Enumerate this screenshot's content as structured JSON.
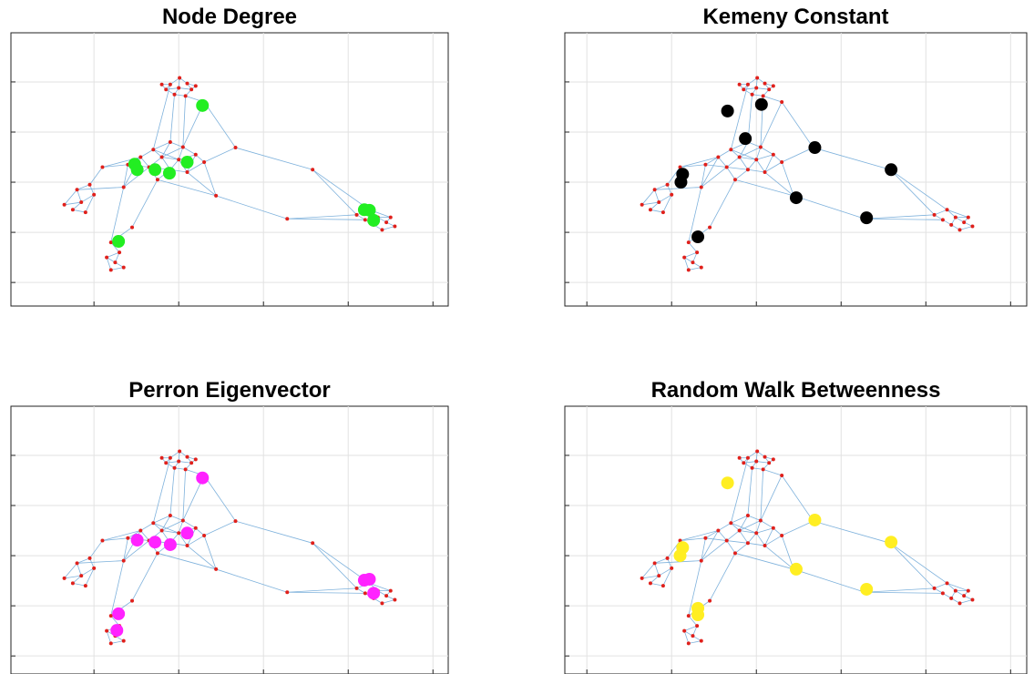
{
  "network": {
    "node_color": "#e0201b",
    "edge_color": "#7fb2dc",
    "x": [
      2.01,
      1.9,
      2.1,
      1.85,
      2.0,
      2.15,
      1.95,
      2.08,
      1.8,
      2.2,
      1.9,
      1.7,
      2.05,
      1.55,
      1.8,
      2.0,
      2.2,
      1.65,
      1.9,
      2.1,
      1.4,
      1.75,
      2.3,
      0.65,
      0.8,
      0.95,
      0.85,
      0.75,
      1.0,
      0.9,
      1.2,
      1.3,
      1.15,
      1.25,
      1.35,
      1.2,
      4.1,
      4.25,
      4.35,
      4.45,
      4.55,
      4.3,
      4.4,
      4.2,
      4.5,
      2.67,
      3.58,
      3.28,
      2.44,
      2.3,
      1.35,
      1.1,
      1.45
    ],
    "y": [
      5.08,
      4.95,
      4.97,
      4.85,
      4.88,
      4.85,
      4.75,
      4.72,
      4.95,
      4.92,
      3.8,
      3.65,
      3.7,
      3.5,
      3.5,
      3.45,
      3.55,
      3.3,
      3.25,
      3.2,
      3.35,
      3.05,
      3.4,
      2.55,
      2.85,
      2.95,
      2.6,
      2.45,
      2.75,
      2.4,
      1.8,
      1.6,
      1.5,
      1.4,
      1.3,
      1.25,
      2.35,
      2.45,
      2.3,
      2.2,
      2.12,
      2.15,
      2.05,
      2.25,
      2.3,
      3.69,
      3.25,
      2.27,
      2.73,
      4.6,
      2.9,
      3.3,
      2.1
    ],
    "edges": [
      [
        0,
        1
      ],
      [
        0,
        2
      ],
      [
        1,
        3
      ],
      [
        2,
        5
      ],
      [
        3,
        4
      ],
      [
        4,
        5
      ],
      [
        4,
        6
      ],
      [
        6,
        7
      ],
      [
        1,
        8
      ],
      [
        2,
        9
      ],
      [
        0,
        4
      ],
      [
        5,
        7
      ],
      [
        3,
        6
      ],
      [
        8,
        3
      ],
      [
        9,
        5
      ],
      [
        6,
        10
      ],
      [
        7,
        12
      ],
      [
        1,
        11
      ],
      [
        7,
        49
      ],
      [
        49,
        12
      ],
      [
        49,
        45
      ],
      [
        10,
        11
      ],
      [
        10,
        12
      ],
      [
        11,
        13
      ],
      [
        11,
        14
      ],
      [
        12,
        15
      ],
      [
        12,
        16
      ],
      [
        13,
        17
      ],
      [
        14,
        15
      ],
      [
        15,
        16
      ],
      [
        14,
        18
      ],
      [
        15,
        19
      ],
      [
        17,
        18
      ],
      [
        18,
        19
      ],
      [
        13,
        20
      ],
      [
        17,
        21
      ],
      [
        18,
        21
      ],
      [
        16,
        22
      ],
      [
        19,
        22
      ],
      [
        10,
        14
      ],
      [
        11,
        15
      ],
      [
        12,
        14
      ],
      [
        20,
        17
      ],
      [
        14,
        17
      ],
      [
        15,
        18
      ],
      [
        16,
        19
      ],
      [
        22,
        45
      ],
      [
        45,
        46
      ],
      [
        46,
        36
      ],
      [
        46,
        37
      ],
      [
        19,
        48
      ],
      [
        48,
        47
      ],
      [
        47,
        36
      ],
      [
        47,
        43
      ],
      [
        22,
        48
      ],
      [
        21,
        48
      ],
      [
        36,
        37
      ],
      [
        37,
        38
      ],
      [
        38,
        39
      ],
      [
        39,
        40
      ],
      [
        38,
        41
      ],
      [
        41,
        42
      ],
      [
        43,
        41
      ],
      [
        36,
        43
      ],
      [
        44,
        39
      ],
      [
        44,
        38
      ],
      [
        40,
        42
      ],
      [
        37,
        44
      ],
      [
        20,
        51
      ],
      [
        51,
        25
      ],
      [
        13,
        51
      ],
      [
        50,
        24
      ],
      [
        50,
        17
      ],
      [
        23,
        24
      ],
      [
        24,
        25
      ],
      [
        25,
        28
      ],
      [
        23,
        26
      ],
      [
        26,
        27
      ],
      [
        27,
        29
      ],
      [
        28,
        26
      ],
      [
        24,
        26
      ],
      [
        29,
        28
      ],
      [
        21,
        52
      ],
      [
        52,
        30
      ],
      [
        50,
        30
      ],
      [
        30,
        31
      ],
      [
        31,
        32
      ],
      [
        32,
        33
      ],
      [
        33,
        34
      ],
      [
        34,
        35
      ],
      [
        35,
        32
      ],
      [
        31,
        33
      ],
      [
        20,
        50
      ],
      [
        13,
        50
      ]
    ]
  },
  "chart_data": [
    {
      "type": "network",
      "title": "Node Degree",
      "xlim": [
        0.02,
        5.18
      ],
      "ylim": [
        0.53,
        5.98
      ],
      "xticks": [
        1,
        2,
        3,
        4,
        5
      ],
      "yticks": [
        1,
        2,
        3,
        4,
        5
      ],
      "grid": true,
      "highlight": {
        "color": "#22ee22",
        "x": [
          2.28,
          1.48,
          1.51,
          1.72,
          1.89,
          2.1,
          4.19,
          4.25,
          4.3,
          1.29
        ],
        "y": [
          4.53,
          3.36,
          3.25,
          3.25,
          3.18,
          3.4,
          2.45,
          2.44,
          2.24,
          1.82
        ]
      }
    },
    {
      "type": "network",
      "title": "Kemeny Constant",
      "xlim": [
        -0.26,
        5.19
      ],
      "ylim": [
        0.53,
        5.98
      ],
      "xticks": [
        0,
        1,
        2,
        3,
        4,
        5
      ],
      "yticks": [
        1,
        2,
        3,
        4,
        5
      ],
      "grid": true,
      "highlight": {
        "color": "#000000",
        "x": [
          1.66,
          2.06,
          1.87,
          2.69,
          3.59,
          1.13,
          1.11,
          2.47,
          3.3,
          1.31
        ],
        "y": [
          4.42,
          4.55,
          3.87,
          3.69,
          3.25,
          3.16,
          3.0,
          2.69,
          2.29,
          1.91
        ]
      }
    },
    {
      "type": "network",
      "title": "Perron Eigenvector",
      "xlim": [
        0.02,
        5.18
      ],
      "ylim": [
        0.64,
        5.98
      ],
      "xticks": [
        1,
        2,
        3,
        4,
        5
      ],
      "yticks": [
        1,
        2,
        3,
        4,
        5
      ],
      "grid": true,
      "highlight": {
        "color": "#ff22ff",
        "x": [
          2.28,
          1.51,
          1.72,
          1.9,
          2.1,
          4.19,
          4.25,
          4.3,
          1.29,
          1.27
        ],
        "y": [
          4.55,
          3.31,
          3.27,
          3.22,
          3.45,
          2.51,
          2.53,
          2.25,
          1.84,
          1.51
        ]
      }
    },
    {
      "type": "network",
      "title": "Random Walk Betweenness",
      "xlim": [
        -0.26,
        5.19
      ],
      "ylim": [
        0.64,
        5.98
      ],
      "xticks": [
        0,
        1,
        2,
        3,
        4,
        5
      ],
      "yticks": [
        1,
        2,
        3,
        4,
        5
      ],
      "grid": true,
      "highlight": {
        "color": "#ffee22",
        "x": [
          1.66,
          2.69,
          3.59,
          1.13,
          1.1,
          2.47,
          3.3,
          1.31,
          1.31
        ],
        "y": [
          4.45,
          3.71,
          3.27,
          3.16,
          3.0,
          2.73,
          2.33,
          1.95,
          1.82
        ]
      }
    }
  ]
}
